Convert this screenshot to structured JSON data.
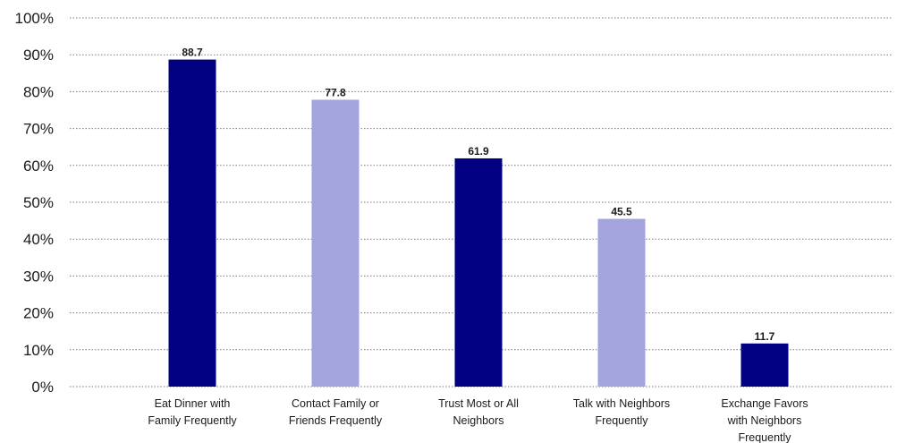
{
  "chart_data": {
    "type": "bar",
    "categories": [
      [
        "Eat Dinner with",
        "Family Frequently"
      ],
      [
        "Contact Family or",
        "Friends Frequently"
      ],
      [
        "Trust Most or All",
        "Neighbors"
      ],
      [
        "Talk with Neighbors",
        "Frequently"
      ],
      [
        "Exchange Favors",
        "with Neighbors",
        "Frequently"
      ]
    ],
    "values": [
      88.7,
      77.8,
      61.9,
      45.5,
      11.7
    ],
    "value_labels": [
      "88.7",
      "77.8",
      "61.9",
      "45.5",
      "11.7"
    ],
    "bar_colors": [
      "#000080",
      "#a3a3dd",
      "#000080",
      "#a3a3dd",
      "#000080"
    ],
    "title": "",
    "xlabel": "",
    "ylabel": "",
    "ylim": [
      0,
      100
    ],
    "yticks": [
      "0%",
      "10%",
      "20%",
      "30%",
      "40%",
      "50%",
      "60%",
      "70%",
      "80%",
      "90%",
      "100%"
    ],
    "grid": true,
    "legend": "none"
  }
}
